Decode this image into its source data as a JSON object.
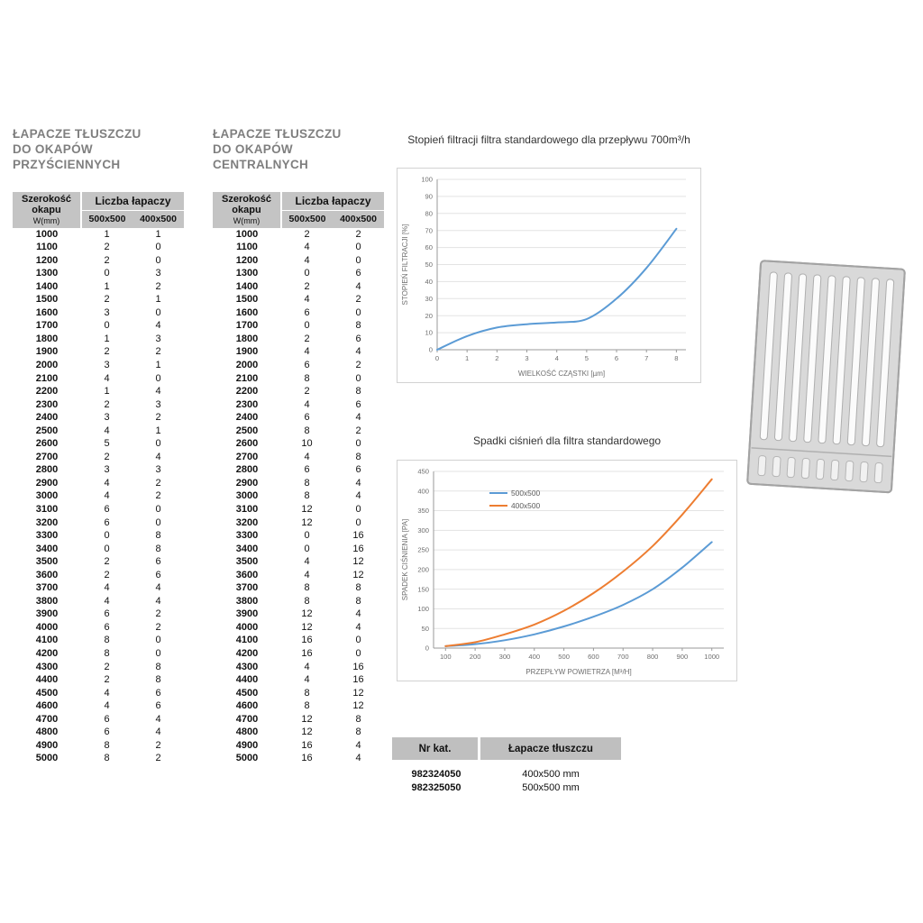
{
  "left_table": {
    "title_lines": [
      "ŁAPACZE TŁUSZCZU",
      "DO OKAPÓW",
      "PRZYŚCIENNYCH"
    ],
    "header": {
      "width_label": "Szerokość okapu",
      "width_unit": "W(mm)",
      "count_label": "Liczba łapaczy",
      "sub_columns": [
        "500x500",
        "400x500"
      ]
    },
    "rows": [
      [
        1000,
        1,
        1
      ],
      [
        1100,
        2,
        0
      ],
      [
        1200,
        2,
        0
      ],
      [
        1300,
        0,
        3
      ],
      [
        1400,
        1,
        2
      ],
      [
        1500,
        2,
        1
      ],
      [
        1600,
        3,
        0
      ],
      [
        1700,
        0,
        4
      ],
      [
        1800,
        1,
        3
      ],
      [
        1900,
        2,
        2
      ],
      [
        2000,
        3,
        1
      ],
      [
        2100,
        4,
        0
      ],
      [
        2200,
        1,
        4
      ],
      [
        2300,
        2,
        3
      ],
      [
        2400,
        3,
        2
      ],
      [
        2500,
        4,
        1
      ],
      [
        2600,
        5,
        0
      ],
      [
        2700,
        2,
        4
      ],
      [
        2800,
        3,
        3
      ],
      [
        2900,
        4,
        2
      ],
      [
        3000,
        4,
        2
      ],
      [
        3100,
        6,
        0
      ],
      [
        3200,
        6,
        0
      ],
      [
        3300,
        0,
        8
      ],
      [
        3400,
        0,
        8
      ],
      [
        3500,
        2,
        6
      ],
      [
        3600,
        2,
        6
      ],
      [
        3700,
        4,
        4
      ],
      [
        3800,
        4,
        4
      ],
      [
        3900,
        6,
        2
      ],
      [
        4000,
        6,
        2
      ],
      [
        4100,
        8,
        0
      ],
      [
        4200,
        8,
        0
      ],
      [
        4300,
        2,
        8
      ],
      [
        4400,
        2,
        8
      ],
      [
        4500,
        4,
        6
      ],
      [
        4600,
        4,
        6
      ],
      [
        4700,
        6,
        4
      ],
      [
        4800,
        6,
        4
      ],
      [
        4900,
        8,
        2
      ],
      [
        5000,
        8,
        2
      ]
    ]
  },
  "center_table": {
    "title_lines": [
      "ŁAPACZE TŁUSZCZU",
      "DO OKAPÓW",
      "CENTRALNYCH"
    ],
    "header": {
      "width_label": "Szerokość okapu",
      "width_unit": "W(mm)",
      "count_label": "Liczba łapaczy",
      "sub_columns": [
        "500x500",
        "400x500"
      ]
    },
    "rows": [
      [
        1000,
        2,
        2
      ],
      [
        1100,
        4,
        0
      ],
      [
        1200,
        4,
        0
      ],
      [
        1300,
        0,
        6
      ],
      [
        1400,
        2,
        4
      ],
      [
        1500,
        4,
        2
      ],
      [
        1600,
        6,
        0
      ],
      [
        1700,
        0,
        8
      ],
      [
        1800,
        2,
        6
      ],
      [
        1900,
        4,
        4
      ],
      [
        2000,
        6,
        2
      ],
      [
        2100,
        8,
        0
      ],
      [
        2200,
        2,
        8
      ],
      [
        2300,
        4,
        6
      ],
      [
        2400,
        6,
        4
      ],
      [
        2500,
        8,
        2
      ],
      [
        2600,
        10,
        0
      ],
      [
        2700,
        4,
        8
      ],
      [
        2800,
        6,
        6
      ],
      [
        2900,
        8,
        4
      ],
      [
        3000,
        8,
        4
      ],
      [
        3100,
        12,
        0
      ],
      [
        3200,
        12,
        0
      ],
      [
        3300,
        0,
        16
      ],
      [
        3400,
        0,
        16
      ],
      [
        3500,
        4,
        12
      ],
      [
        3600,
        4,
        12
      ],
      [
        3700,
        8,
        8
      ],
      [
        3800,
        8,
        8
      ],
      [
        3900,
        12,
        4
      ],
      [
        4000,
        12,
        4
      ],
      [
        4100,
        16,
        0
      ],
      [
        4200,
        16,
        0
      ],
      [
        4300,
        4,
        16
      ],
      [
        4400,
        4,
        16
      ],
      [
        4500,
        8,
        12
      ],
      [
        4600,
        8,
        12
      ],
      [
        4700,
        12,
        8
      ],
      [
        4800,
        12,
        8
      ],
      [
        4900,
        16,
        4
      ],
      [
        5000,
        16,
        4
      ]
    ]
  },
  "catalog_table": {
    "headers": [
      "Nr kat.",
      "Łapacze tłuszczu"
    ],
    "rows": [
      [
        "982324050",
        "400x500 mm"
      ],
      [
        "982325050",
        "500x500 mm"
      ]
    ]
  },
  "filter_image": {
    "name": "baffle-grease-filter-photo"
  },
  "colors": {
    "series_blue": "#5b9bd5",
    "series_orange": "#ed7d31",
    "table_header_gray": "#c4c4c4",
    "title_gray": "#7f7f7f"
  },
  "chart_data": [
    {
      "type": "line",
      "title": "Stopień filtracji filtra standardowego dla przepływu 700m³/h",
      "xlabel": "WIELKOŚĆ CZĄSTKI [µm]",
      "ylabel": "STOPIEŃ FILTRACJI [%]",
      "x": [
        0,
        1,
        2,
        3,
        4,
        5,
        6,
        7,
        8
      ],
      "series": [
        {
          "name": "stopień filtracji",
          "color": "#5b9bd5",
          "values": [
            0,
            8,
            13,
            15,
            16,
            18,
            30,
            48,
            71
          ]
        }
      ],
      "xlim": [
        0,
        8
      ],
      "ylim": [
        0,
        100
      ],
      "ytick": 10,
      "grid": true,
      "legend": false
    },
    {
      "type": "line",
      "title": "Spadki ciśnień dla filtra standardowego",
      "xlabel": "PRZEPŁYW POWIETRZA [M³/H]",
      "ylabel": "SPADEK CIŚNIENIA [PA]",
      "x": [
        100,
        200,
        300,
        400,
        500,
        600,
        700,
        800,
        900,
        1000
      ],
      "series": [
        {
          "name": "500x500",
          "color": "#5b9bd5",
          "values": [
            5,
            10,
            20,
            35,
            55,
            80,
            110,
            150,
            205,
            270
          ]
        },
        {
          "name": "400x500",
          "color": "#ed7d31",
          "values": [
            5,
            15,
            35,
            60,
            95,
            140,
            195,
            260,
            340,
            430
          ]
        }
      ],
      "xlim": [
        100,
        1000
      ],
      "ylim": [
        0,
        450
      ],
      "ytick": 50,
      "grid": true,
      "legend": true,
      "legend_position": "top-left-inside"
    }
  ]
}
